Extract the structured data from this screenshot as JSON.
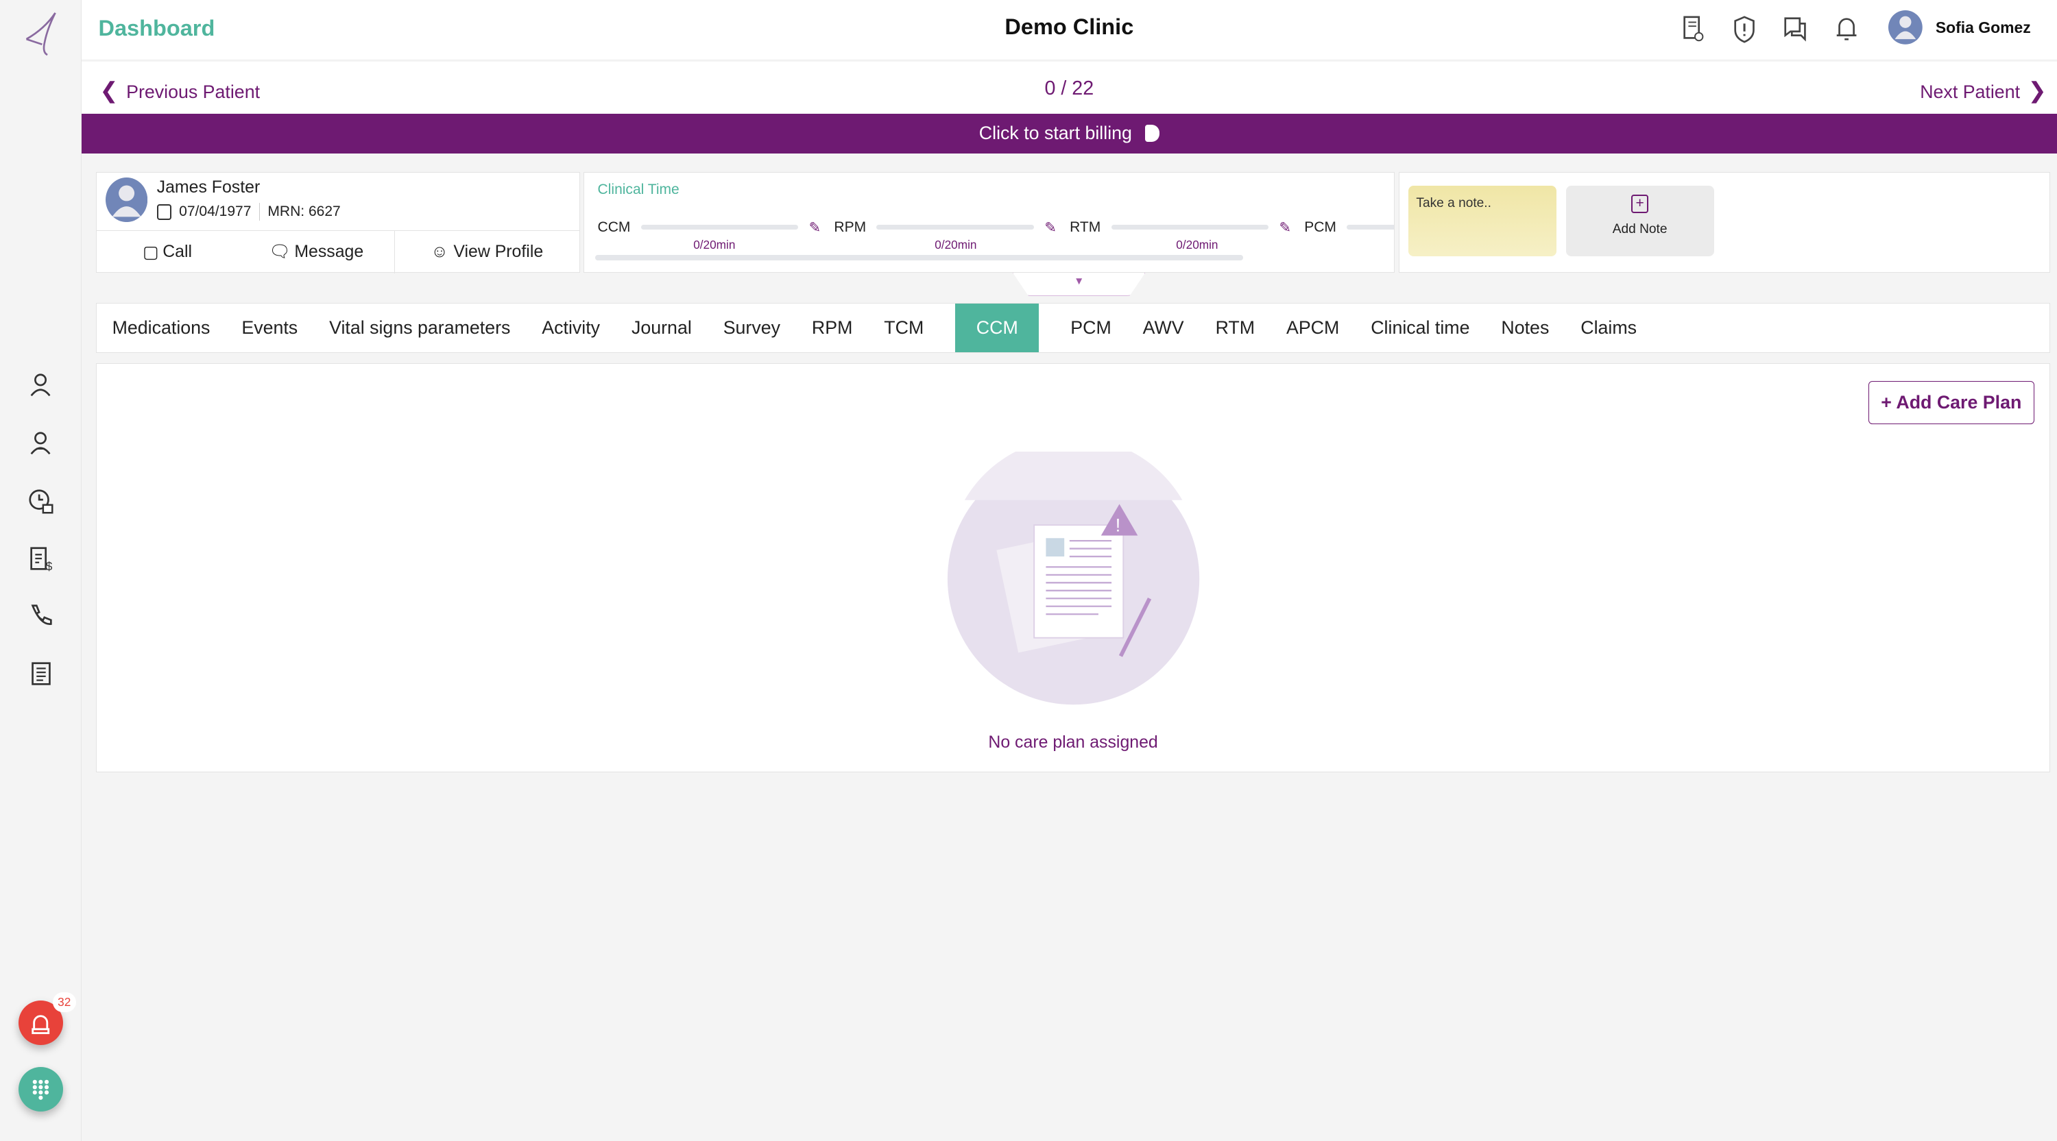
{
  "header": {
    "title": "Dashboard",
    "clinic": "Demo Clinic",
    "user": "Sofia Gomez"
  },
  "nav": {
    "previous": "Previous Patient",
    "next": "Next Patient",
    "counter": "0 / 22"
  },
  "billing": {
    "label": "Click to start billing"
  },
  "patient": {
    "name": "James Foster",
    "dob": "07/04/1977",
    "mrn": "MRN: 6627",
    "call": "Call",
    "message": "Message",
    "view_profile": "View Profile"
  },
  "clinical_time": {
    "title": "Clinical Time",
    "items": [
      {
        "label": "CCM",
        "value": "0/20min"
      },
      {
        "label": "RPM",
        "value": "0/20min"
      },
      {
        "label": "RTM",
        "value": "0/20min"
      },
      {
        "label": "PCM",
        "value": ""
      }
    ]
  },
  "notes": {
    "placeholder": "Take a note..",
    "add": "Add Note"
  },
  "tabs": [
    "Medications",
    "Events",
    "Vital signs parameters",
    "Activity",
    "Journal",
    "Survey",
    "RPM",
    "TCM",
    "CCM",
    "PCM",
    "AWV",
    "RTM",
    "APCM",
    "Clinical time",
    "Notes",
    "Claims"
  ],
  "active_tab": "CCM",
  "main": {
    "add_care_plan": "+ Add Care Plan",
    "empty": "No care plan assigned"
  },
  "sidebar": {
    "alert_count": "32"
  },
  "colors": {
    "brand": "#6e1a72",
    "accent": "#4fb59d",
    "alert": "#e8423a"
  }
}
